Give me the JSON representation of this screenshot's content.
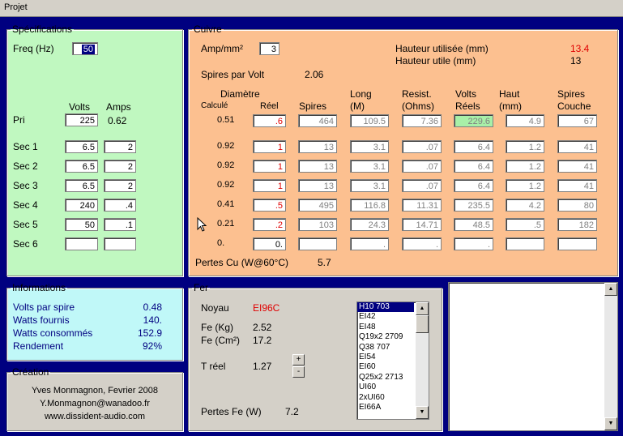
{
  "menu": {
    "projet": "Projet"
  },
  "spec": {
    "legend": "Spécifications",
    "freq_label": "Freq (Hz)",
    "freq_value": "50",
    "volts_header": "Volts",
    "amps_header": "Amps",
    "pri_label": "Pri",
    "pri_volts": "225",
    "pri_amps": "0.62",
    "secs": [
      {
        "label": "Sec 1",
        "volts": "6.5",
        "amps": "2"
      },
      {
        "label": "Sec 2",
        "volts": "6.5",
        "amps": "2"
      },
      {
        "label": "Sec 3",
        "volts": "6.5",
        "amps": "2"
      },
      {
        "label": "Sec 4",
        "volts": "240",
        "amps": ".4"
      },
      {
        "label": "Sec 5",
        "volts": "50",
        "amps": ".1"
      },
      {
        "label": "Sec 6",
        "volts": "",
        "amps": ""
      }
    ]
  },
  "cuivre": {
    "legend": "Cuivre",
    "amp_label": "Amp/mm²",
    "amp_value": "3",
    "hauteur_utilisee_label": "Hauteur utilisée (mm)",
    "hauteur_utilisee_value": "13.4",
    "hauteur_utile_label": "Hauteur utile (mm)",
    "hauteur_utile_value": "13",
    "spires_volt_label": "Spires par Volt",
    "spires_volt_value": "2.06",
    "headers": {
      "diametre": "Diamètre",
      "calcule": "Calculé",
      "reel": "Réel",
      "spires": "Spires",
      "long": "Long",
      "long_unit": "(M)",
      "resist": "Resist.",
      "resist_unit": "(Ohms)",
      "volts": "Volts",
      "volts2": "Réels",
      "haut": "Haut",
      "haut_unit": "(mm)",
      "spires_couche": "Spires",
      "spires_couche2": "Couche"
    },
    "rows": [
      {
        "calc": "0.51",
        "reel": ".6",
        "spires": "464",
        "long": "109.5",
        "resist": "7.36",
        "volts": "229.6",
        "haut": "4.9",
        "couche": "67"
      },
      {
        "calc": "0.92",
        "reel": "1",
        "spires": "13",
        "long": "3.1",
        "resist": ".07",
        "volts": "6.4",
        "haut": "1.2",
        "couche": "41"
      },
      {
        "calc": "0.92",
        "reel": "1",
        "spires": "13",
        "long": "3.1",
        "resist": ".07",
        "volts": "6.4",
        "haut": "1.2",
        "couche": "41"
      },
      {
        "calc": "0.92",
        "reel": "1",
        "spires": "13",
        "long": "3.1",
        "resist": ".07",
        "volts": "6.4",
        "haut": "1.2",
        "couche": "41"
      },
      {
        "calc": "0.41",
        "reel": ".5",
        "spires": "495",
        "long": "116.8",
        "resist": "11.31",
        "volts": "235.5",
        "haut": "4.2",
        "couche": "80"
      },
      {
        "calc": "0.21",
        "reel": ".2",
        "spires": "103",
        "long": "24.3",
        "resist": "14.71",
        "volts": "48.5",
        "haut": ".5",
        "couche": "182"
      },
      {
        "calc": "0.",
        "reel": "0.",
        "spires": "",
        "long": ".",
        "resist": ".",
        "volts": ".",
        "haut": "",
        "couche": ""
      }
    ],
    "pertes_label": "Pertes Cu (W@60°C)",
    "pertes_value": "5.7"
  },
  "info": {
    "legend": "Informations",
    "rows": [
      {
        "label": "Volts par spire",
        "value": "0.48"
      },
      {
        "label": "Watts fournis",
        "value": "140."
      },
      {
        "label": "Watts consommés",
        "value": "152.9"
      },
      {
        "label": "Rendement",
        "value": "92%"
      }
    ]
  },
  "creation": {
    "legend": "Création",
    "line1": "Yves Monmagnon, Fevrier 2008",
    "line2": "Y.Monmagnon@wanadoo.fr",
    "line3": "www.dissident-audio.com"
  },
  "fer": {
    "legend": "Fer",
    "noyau_label": "Noyau",
    "noyau_value": "EI96C",
    "fe_kg_label": "Fe (Kg)",
    "fe_kg_value": "2.52",
    "fe_cm_label": "Fe (Cm²)",
    "fe_cm_value": "17.2",
    "t_reel_label": "T réel",
    "t_reel_value": "1.27",
    "plus": "+",
    "minus": "-",
    "pertes_label": "Pertes Fe (W)",
    "pertes_value": "7.2",
    "cores": [
      "H10  703",
      "EI42",
      "EI48",
      "Q19x2  2709",
      "Q38  707",
      "EI54",
      "EI60",
      "Q25x2  2713",
      "UI60",
      "2xUI60",
      "EI66A"
    ]
  },
  "colors": {
    "green": "#c0f8c0",
    "orange": "#fcc090",
    "cyan": "#c0f8f8",
    "red": "#e00000",
    "navy": "#000080"
  }
}
